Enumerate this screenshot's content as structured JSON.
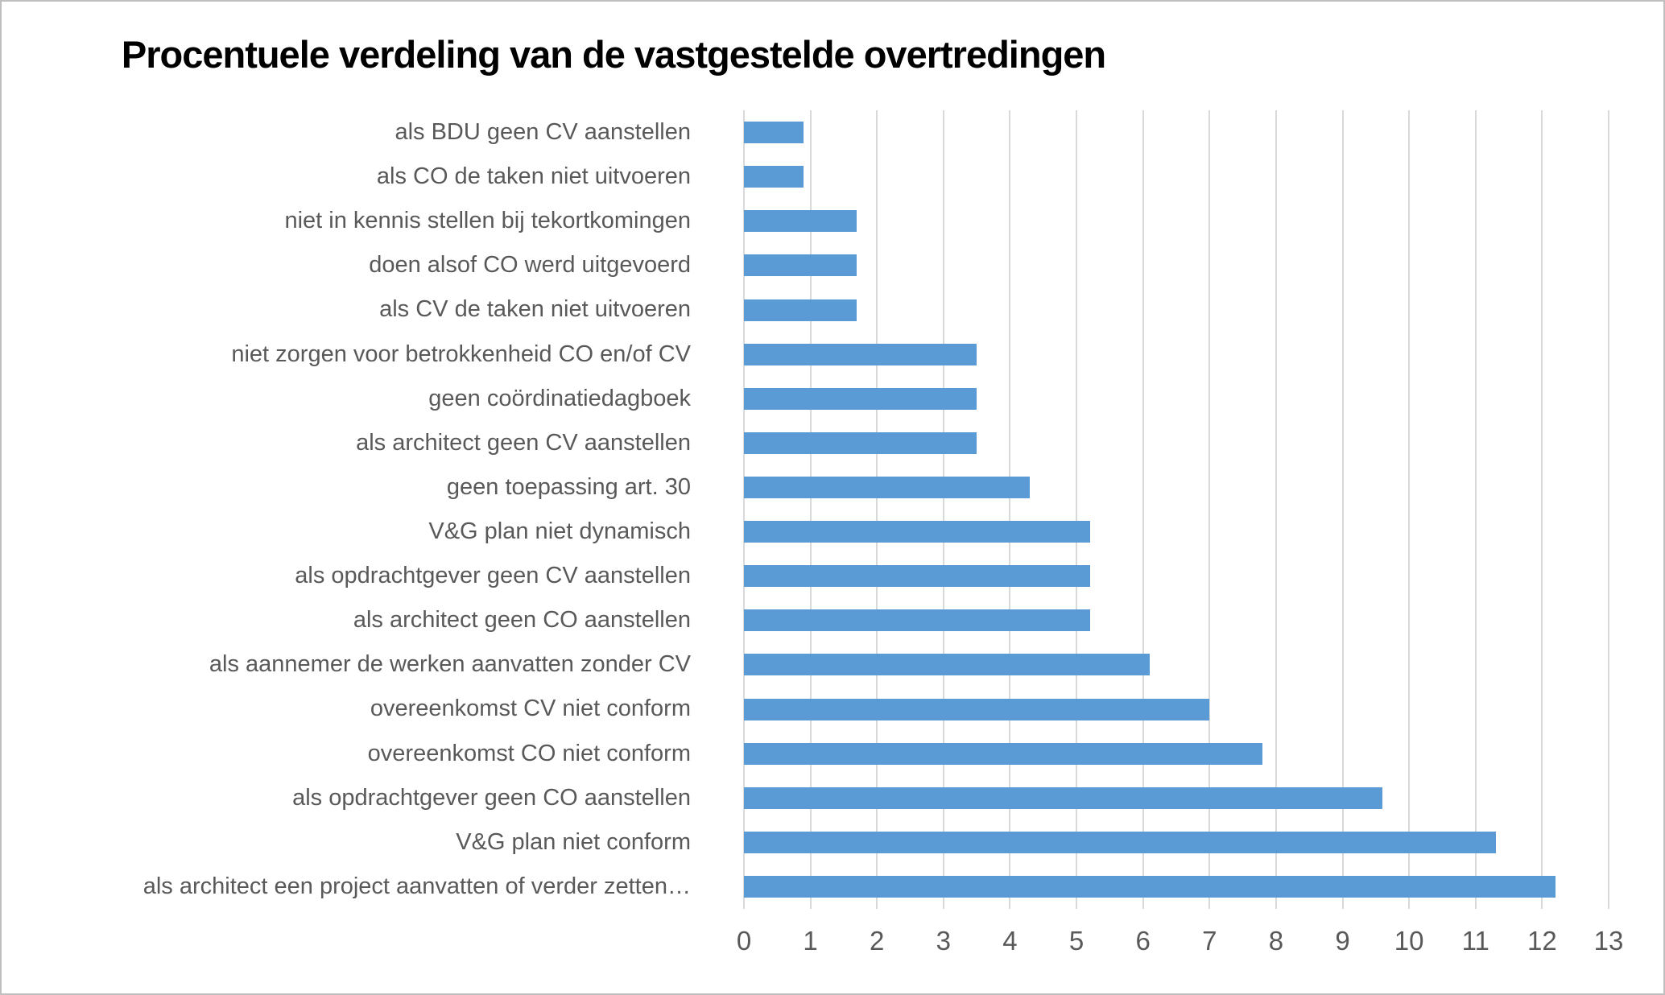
{
  "chart_data": {
    "type": "bar",
    "orientation": "horizontal",
    "title": "Procentuele verdeling van de vastgestelde overtredingen",
    "categories": [
      "als BDU geen CV aanstellen",
      "als CO de taken niet uitvoeren",
      "niet in kennis stellen bij tekortkomingen",
      "doen alsof CO werd uitgevoerd",
      "als CV de taken niet uitvoeren",
      "niet zorgen voor betrokkenheid CO en/of CV",
      "geen coördinatiedagboek",
      "als architect geen CV aanstellen",
      "geen toepassing art. 30",
      "V&G plan niet dynamisch",
      "als opdrachtgever geen CV aanstellen",
      "als architect geen CO aanstellen",
      "als aannemer de werken aanvatten zonder CV",
      "overeenkomst CV niet conform",
      "overeenkomst CO niet conform",
      "als opdrachtgever geen CO aanstellen",
      "V&G plan niet conform",
      "als architect een project aanvatten of verder zetten…"
    ],
    "values": [
      0.9,
      0.9,
      1.7,
      1.7,
      1.7,
      3.5,
      3.5,
      3.5,
      4.3,
      5.2,
      5.2,
      5.2,
      6.1,
      7.0,
      7.8,
      9.6,
      11.3,
      12.2
    ],
    "xlabel": "",
    "ylabel": "",
    "xlim": [
      0,
      13
    ],
    "xticks": [
      0,
      1,
      2,
      3,
      4,
      5,
      6,
      7,
      8,
      9,
      10,
      11,
      12,
      13
    ],
    "grid": "vertical",
    "legend": "none",
    "bar_color": "#5B9BD5",
    "text_color": "#595959",
    "gridline_color": "#D9D9D9",
    "background_color": "#FFFFFF",
    "border_color": "#BFBFBF"
  }
}
